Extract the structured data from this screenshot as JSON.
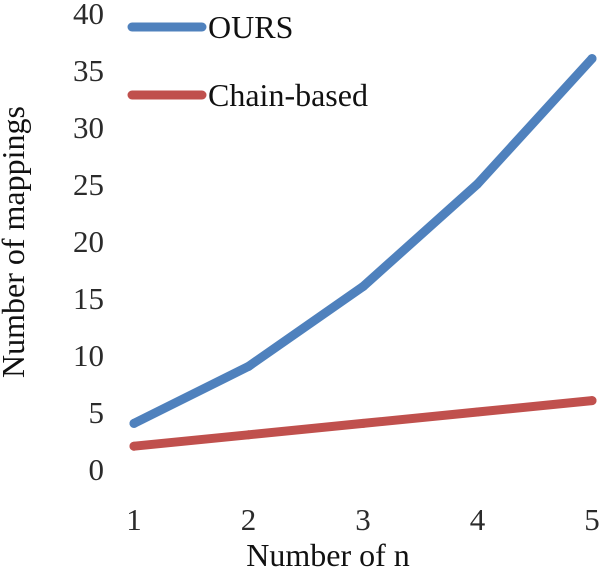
{
  "chart_data": {
    "type": "line",
    "title": "",
    "xlabel": "Number of n",
    "ylabel": "Number of mappings",
    "categories": [
      "1",
      "2",
      "3",
      "4",
      "5"
    ],
    "x": [
      1,
      2,
      3,
      4,
      5
    ],
    "ylim": [
      0,
      40
    ],
    "yticks": [
      "0",
      "5",
      "10",
      "15",
      "20",
      "25",
      "30",
      "35",
      "40"
    ],
    "grid": false,
    "legend_placement": "top-left",
    "series": [
      {
        "name": "OURS",
        "color": "#4F81BD",
        "values": [
          4,
          9,
          16,
          25,
          36
        ]
      },
      {
        "name": "Chain-based",
        "color": "#C0504D",
        "values": [
          2,
          3,
          4,
          5,
          6
        ]
      }
    ]
  }
}
